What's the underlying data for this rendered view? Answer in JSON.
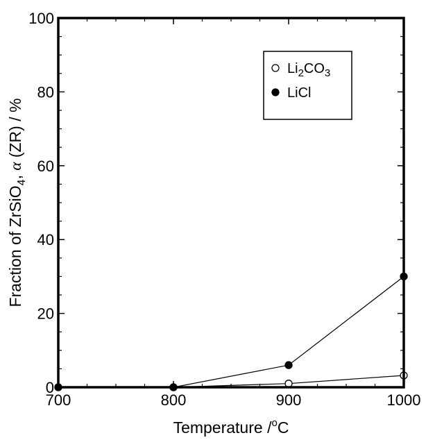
{
  "chart_data": {
    "type": "line",
    "xlabel_main": "Temperature /",
    "xlabel_sup": "o",
    "xlabel_unit": "C",
    "ylabel_pre": "Fraction of ZrSiO",
    "ylabel_sub": "4",
    "ylabel_mid": ", ",
    "ylabel_greek": "α",
    "ylabel_post": " (ZR) / %",
    "xlim": [
      700,
      1000
    ],
    "ylim": [
      0,
      100
    ],
    "x_ticks": [
      700,
      800,
      900,
      1000
    ],
    "x_tick_labels": [
      "700",
      "800",
      "900",
      "1000"
    ],
    "y_ticks": [
      0,
      20,
      40,
      60,
      80,
      100
    ],
    "y_tick_labels": [
      "0",
      "20",
      "40",
      "60",
      "80",
      "100"
    ],
    "grid": false,
    "legend_position": "top-right",
    "series": [
      {
        "name": "Li2CO3",
        "legend_main": "Li",
        "legend_sub1": "2",
        "legend_mid": "CO",
        "legend_sub2": "3",
        "marker": "open-circle",
        "x": [
          700,
          800,
          900,
          1000
        ],
        "y": [
          0,
          0,
          1,
          3.2
        ]
      },
      {
        "name": "LiCl",
        "legend_main": "LiCl",
        "marker": "filled-circle",
        "x": [
          700,
          800,
          900,
          1000
        ],
        "y": [
          0,
          0,
          6,
          30
        ]
      }
    ]
  }
}
